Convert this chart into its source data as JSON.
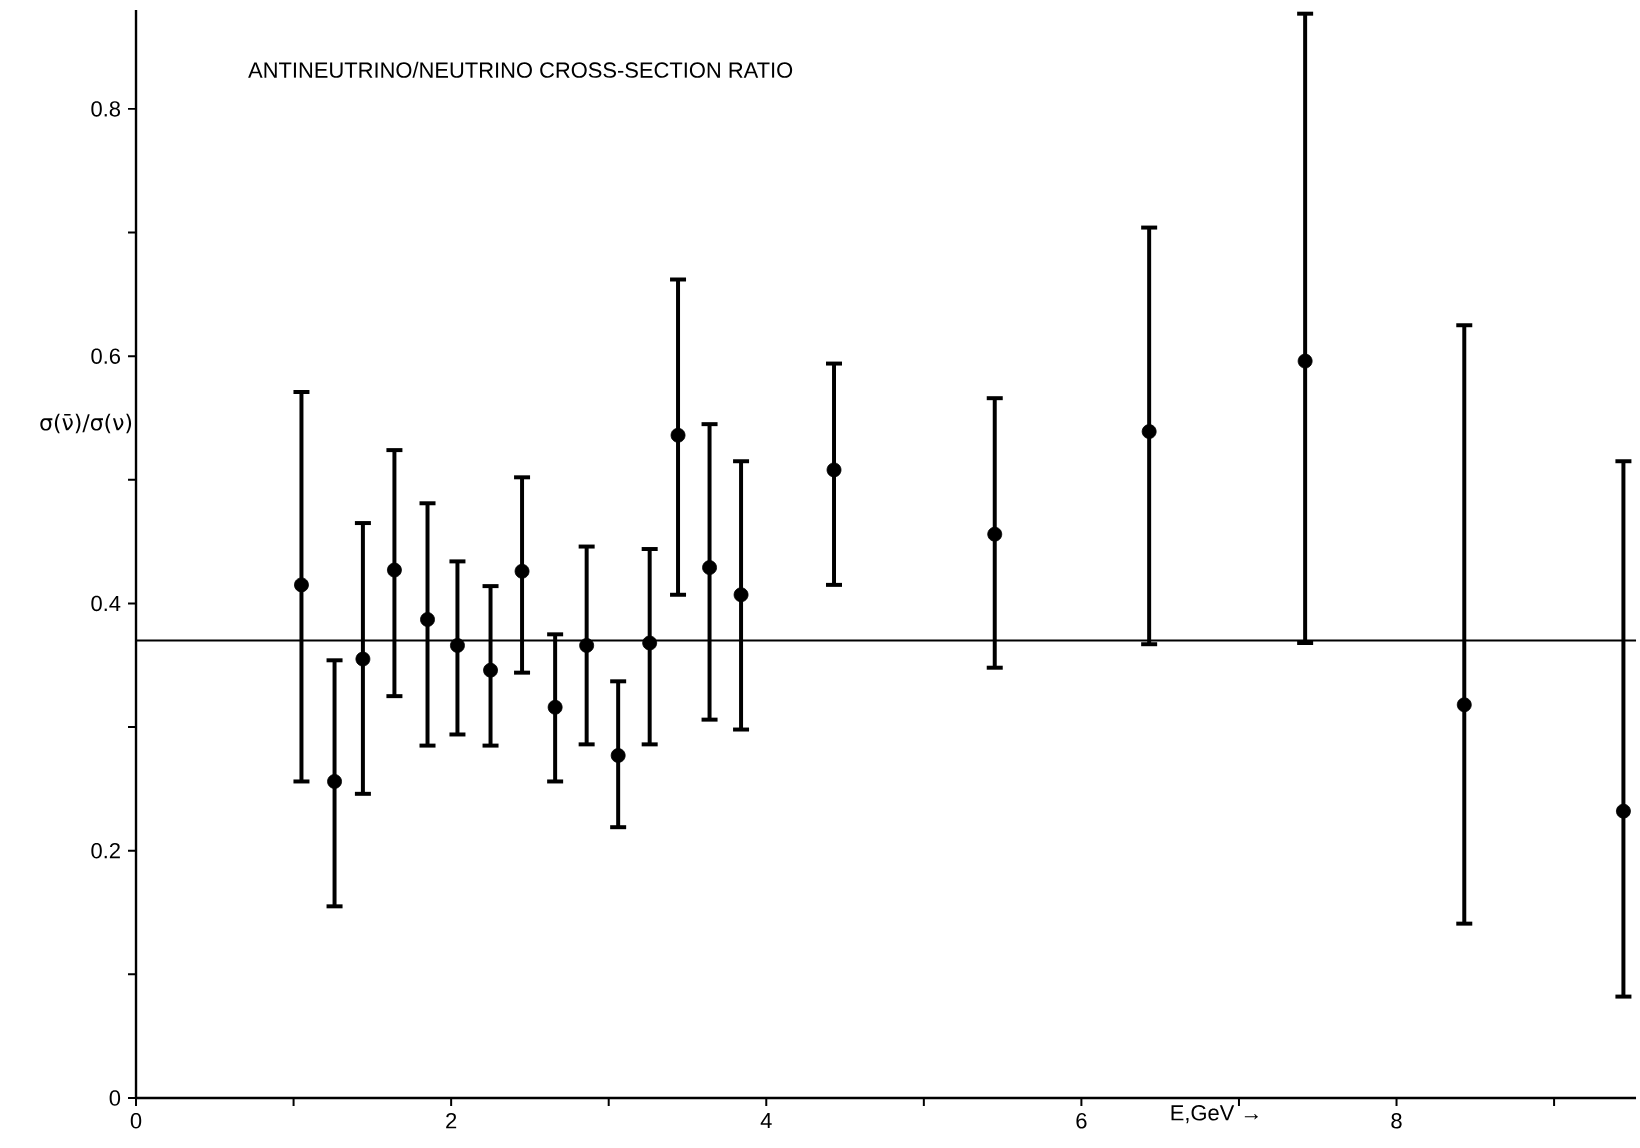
{
  "chart_data": {
    "type": "scatter",
    "title": "ANTINEUTRINO/NEUTRINO   CROSS-SECTION  RATIO",
    "xlabel": "E,GeV →",
    "ylabel": "σ(ν̄)/σ(ν)",
    "x": [
      1.05,
      1.26,
      1.44,
      1.64,
      1.85,
      2.04,
      2.25,
      2.45,
      2.66,
      2.86,
      3.06,
      3.26,
      3.44,
      3.64,
      3.84,
      4.43,
      5.45,
      6.43,
      7.42,
      8.43,
      9.44
    ],
    "series": [
      {
        "color": "#000000",
        "values": [
          0.415,
          0.256,
          0.355,
          0.427,
          0.387,
          0.366,
          0.346,
          0.426,
          0.316,
          0.366,
          0.277,
          0.368,
          0.536,
          0.429,
          0.407,
          0.508,
          0.456,
          0.539,
          0.596,
          0.318,
          0.232
        ],
        "errors": [
          [
            0.256,
            0.571
          ],
          [
            0.155,
            0.354
          ],
          [
            0.246,
            0.465
          ],
          [
            0.325,
            0.524
          ],
          [
            0.285,
            0.481
          ],
          [
            0.294,
            0.434
          ],
          [
            0.285,
            0.414
          ],
          [
            0.344,
            0.502
          ],
          [
            0.256,
            0.375
          ],
          [
            0.286,
            0.446
          ],
          [
            0.219,
            0.337
          ],
          [
            0.286,
            0.444
          ],
          [
            0.407,
            0.662
          ],
          [
            0.306,
            0.545
          ],
          [
            0.298,
            0.515
          ],
          [
            0.415,
            0.594
          ],
          [
            0.348,
            0.566
          ],
          [
            0.367,
            0.704
          ],
          [
            0.368,
            0.877
          ],
          [
            0.141,
            0.625
          ],
          [
            0.082,
            0.515
          ]
        ]
      }
    ],
    "xlim": [
      0,
      9.52
    ],
    "ylim": [
      0,
      0.88
    ],
    "xticks": [
      0,
      {
        "value": 1,
        "label": null
      },
      2,
      {
        "value": 3,
        "label": null
      },
      4,
      {
        "value": 5,
        "label": null
      },
      6,
      {
        "value": 7,
        "label": null
      },
      8,
      {
        "value": 9,
        "label": null
      }
    ],
    "yticks": [
      0,
      {
        "value": 0.1,
        "label": null
      },
      0.2,
      {
        "value": 0.3,
        "label": null
      },
      0.4,
      {
        "value": 0.5,
        "label": null
      },
      0.6,
      {
        "value": 0.7,
        "label": null
      },
      0.8
    ],
    "ref_lines": [
      {
        "axis": "y",
        "value": 0.37,
        "color": "#000000"
      }
    ],
    "grid": false
  }
}
